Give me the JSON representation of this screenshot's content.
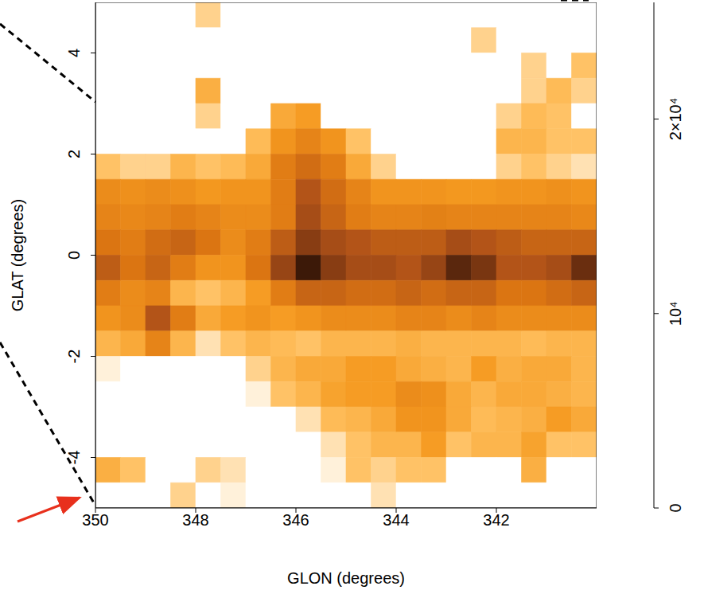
{
  "chart_data": {
    "type": "heatmap",
    "x_label": "GLON (degrees)",
    "y_label": "GLAT (degrees)",
    "xlim": [
      350,
      340
    ],
    "ylim": [
      -5,
      5
    ],
    "xticks": [
      350,
      348,
      346,
      344,
      342
    ],
    "yticks": [
      -4,
      -2,
      0,
      2,
      4
    ],
    "cells": {
      "x": [
        349.75,
        349.25,
        348.75,
        348.25,
        347.75,
        347.25,
        346.75,
        346.25,
        345.75,
        345.25,
        344.75,
        344.25,
        343.75,
        343.25,
        342.75,
        342.25,
        341.75,
        341.25,
        340.75,
        340.25
      ],
      "y": [
        4.75,
        4.25,
        3.75,
        3.25,
        2.75,
        2.25,
        1.75,
        1.25,
        0.75,
        0.25,
        -0.25,
        -0.75,
        -1.25,
        -1.75,
        -2.25,
        -2.75,
        -3.25,
        -3.75,
        -4.25,
        -4.75
      ],
      "values": [
        [
          0,
          0,
          0,
          0,
          1500,
          0,
          0,
          0,
          0,
          0,
          0,
          0,
          0,
          0,
          0,
          0,
          0,
          0,
          0,
          0
        ],
        [
          0,
          0,
          0,
          0,
          0,
          0,
          0,
          0,
          0,
          0,
          0,
          0,
          0,
          0,
          0,
          1500,
          0,
          0,
          0,
          0
        ],
        [
          0,
          0,
          0,
          0,
          0,
          0,
          0,
          0,
          0,
          0,
          0,
          0,
          0,
          0,
          0,
          0,
          0,
          1500,
          0,
          2000
        ],
        [
          0,
          0,
          0,
          0,
          3500,
          0,
          0,
          0,
          0,
          0,
          0,
          0,
          0,
          0,
          0,
          0,
          0,
          1500,
          2500,
          1500
        ],
        [
          0,
          0,
          0,
          0,
          1500,
          0,
          0,
          4000,
          5000,
          0,
          0,
          0,
          0,
          0,
          0,
          0,
          1500,
          2500,
          2000,
          0
        ],
        [
          0,
          0,
          0,
          0,
          0,
          0,
          2500,
          6000,
          8000,
          6000,
          2000,
          0,
          0,
          0,
          0,
          0,
          3000,
          3000,
          2000,
          2000
        ],
        [
          2000,
          1500,
          1500,
          3000,
          2000,
          2500,
          4000,
          9000,
          11000,
          9000,
          4000,
          1500,
          0,
          0,
          0,
          0,
          1500,
          2000,
          1500,
          1000
        ],
        [
          7000,
          6500,
          7000,
          6500,
          5500,
          6000,
          6000,
          9000,
          14000,
          11000,
          8000,
          6000,
          6000,
          6000,
          5500,
          5500,
          6000,
          6000,
          6500,
          6000
        ],
        [
          8000,
          7500,
          8000,
          9000,
          8000,
          7000,
          7000,
          9000,
          15000,
          12000,
          9000,
          8000,
          8000,
          8500,
          8000,
          8000,
          8000,
          8000,
          8000,
          7500
        ],
        [
          10000,
          9000,
          11000,
          12000,
          10000,
          7000,
          9000,
          13000,
          17000,
          15000,
          14000,
          13000,
          13000,
          13000,
          15000,
          14000,
          13000,
          12000,
          12000,
          12000
        ],
        [
          13000,
          10000,
          12000,
          9000,
          6000,
          6000,
          10000,
          16000,
          22000,
          17000,
          15000,
          15000,
          14000,
          16000,
          20000,
          18000,
          14000,
          14000,
          15000,
          19000
        ],
        [
          9000,
          7000,
          8000,
          3000,
          2000,
          3000,
          5000,
          9000,
          12000,
          12000,
          11000,
          11000,
          12000,
          11000,
          12000,
          12000,
          10000,
          10000,
          11000,
          12000
        ],
        [
          6000,
          7000,
          14000,
          9000,
          4000,
          5000,
          6000,
          5000,
          6000,
          7000,
          7000,
          7000,
          8000,
          8000,
          7000,
          8000,
          7000,
          7000,
          7000,
          7000
        ],
        [
          3000,
          4000,
          8000,
          3000,
          1000,
          2000,
          3000,
          2500,
          2000,
          3000,
          3000,
          3000,
          3500,
          3000,
          3000,
          3000,
          3000,
          2500,
          3000,
          3000
        ],
        [
          500,
          0,
          0,
          0,
          0,
          0,
          1500,
          3000,
          4000,
          4000,
          5000,
          5000,
          4000,
          3500,
          3000,
          5000,
          3500,
          4000,
          4000,
          3000
        ],
        [
          0,
          0,
          0,
          0,
          0,
          0,
          500,
          2000,
          3000,
          4500,
          5000,
          5000,
          7000,
          6500,
          4000,
          3000,
          4000,
          4000,
          3500,
          3000
        ],
        [
          0,
          0,
          0,
          0,
          0,
          0,
          0,
          0,
          1000,
          2500,
          3000,
          4000,
          6000,
          6000,
          4000,
          2500,
          3000,
          3500,
          5000,
          4000
        ],
        [
          0,
          0,
          0,
          0,
          0,
          0,
          0,
          0,
          0,
          1000,
          2000,
          3000,
          3000,
          5000,
          2000,
          3000,
          3000,
          4500,
          2000,
          2000
        ],
        [
          3500,
          2000,
          0,
          0,
          1500,
          1000,
          0,
          0,
          0,
          500,
          2000,
          1500,
          2000,
          2000,
          0,
          0,
          0,
          3500,
          0,
          0
        ],
        [
          0,
          0,
          0,
          1500,
          0,
          500,
          0,
          0,
          0,
          0,
          0,
          1000,
          0,
          0,
          0,
          0,
          0,
          0,
          0,
          0
        ]
      ]
    },
    "colorbar": {
      "range": [
        0,
        26000
      ],
      "ticks": [
        0,
        {
          "value": 10000,
          "label": "10⁴"
        },
        {
          "value": 20000,
          "label": "2×10⁴"
        }
      ]
    }
  }
}
